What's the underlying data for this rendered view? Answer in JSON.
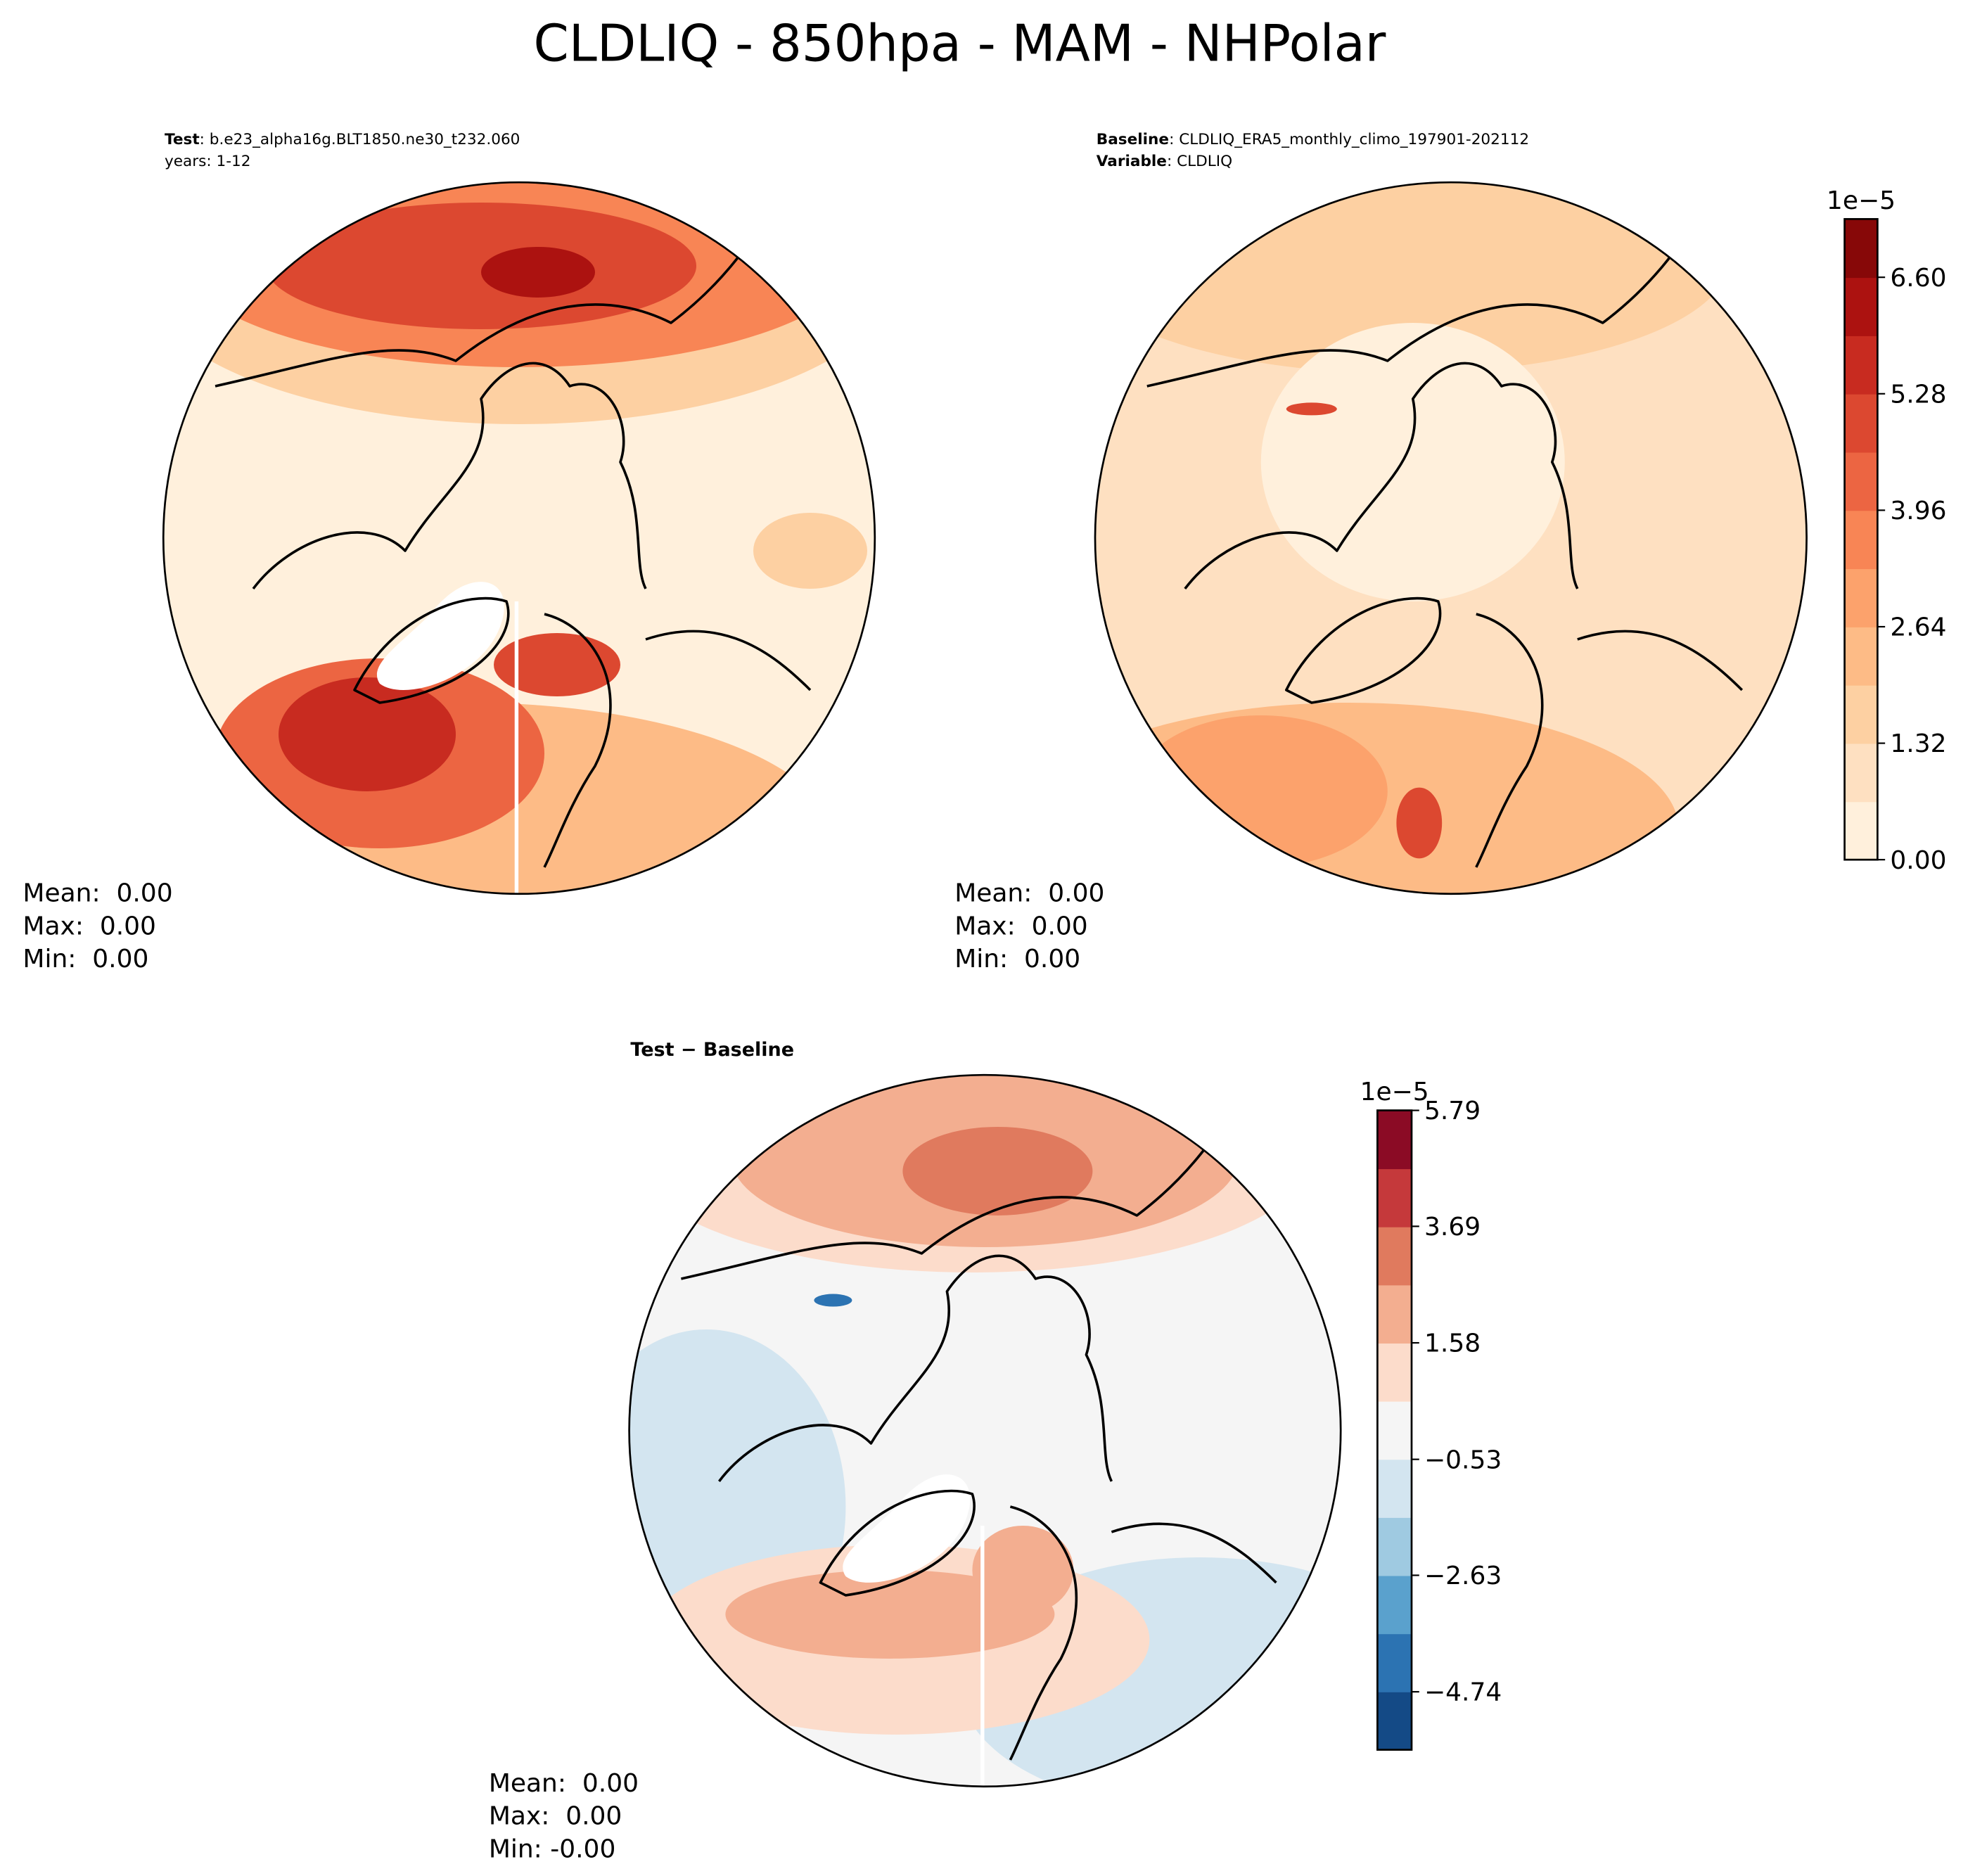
{
  "title": "CLDLIQ - 850hpa - MAM - NHPolar",
  "panels": [
    {
      "header": [
        {
          "key": "Test",
          "value": ": b.e23_alpha16g.BLT1850.ne30_t232.060"
        },
        {
          "value": "years: 1-12"
        }
      ],
      "stats": [
        "Mean:  0.00",
        "Max:  0.00",
        "Min:  0.00"
      ]
    },
    {
      "header": [
        {
          "key": "Baseline",
          "value": ": CLDLIQ_ERA5_monthly_climo_197901-202112"
        },
        {
          "key": "Variable",
          "value": ": CLDLIQ"
        }
      ],
      "stats": [
        "Mean:  0.00",
        "Max:  0.00",
        "Min:  0.00"
      ]
    },
    {
      "header": [
        {
          "key": "Test − Baseline"
        }
      ],
      "stats": [
        "Mean:  0.00",
        "Max:  0.00",
        "Min: -0.00"
      ]
    }
  ],
  "colorbars": [
    {
      "offset": "1e−5",
      "lim": [
        0,
        7.26
      ],
      "ticks": [
        {
          "value": 0,
          "label": "0.00"
        },
        1.32,
        2.64,
        3.96,
        5.28,
        {
          "value": 6.6,
          "label": "6.60"
        }
      ],
      "colors": [
        "#fff0dc",
        "#fee0c1",
        "#fdd0a2",
        "#fdbb86",
        "#fca26c",
        "#f88555",
        "#ec6542",
        "#dc4830",
        "#c82b20",
        "#ac1210",
        "#870808"
      ]
    },
    {
      "offset": "1e−5",
      "lim": [
        -5.79,
        5.79
      ],
      "ticks": [
        {
          "value": -4.74,
          "label": "−4.74"
        },
        {
          "value": -2.63,
          "label": "−2.63"
        },
        {
          "value": -0.53,
          "label": "−0.53"
        },
        1.58,
        3.69,
        5.79
      ],
      "colors": [
        "#144a86",
        "#2c73b2",
        "#5aa1cd",
        "#9fcae1",
        "#d3e5f0",
        "#f5f5f5",
        "#fcdccb",
        "#f3ae90",
        "#e07a5e",
        "#c5393b",
        "#8b0b25"
      ]
    }
  ]
}
